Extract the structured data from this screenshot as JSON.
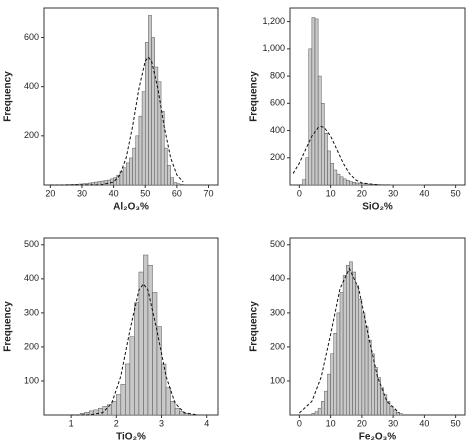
{
  "chart_data": [
    {
      "type": "histogram",
      "xlabel": "Al₂O₃%",
      "ylabel": "Frequency",
      "bins": [
        25,
        26,
        27,
        28,
        29,
        30,
        31,
        32,
        33,
        34,
        35,
        36,
        37,
        38,
        39,
        40,
        41,
        42,
        43,
        44,
        45,
        46,
        47,
        48,
        49,
        50,
        51,
        52,
        53,
        54,
        55,
        56,
        57,
        58,
        59,
        60,
        61,
        62
      ],
      "values": [
        2,
        2,
        3,
        3,
        4,
        5,
        6,
        8,
        10,
        12,
        14,
        16,
        18,
        20,
        25,
        30,
        40,
        55,
        70,
        90,
        110,
        150,
        200,
        280,
        380,
        580,
        690,
        600,
        480,
        420,
        300,
        150,
        80,
        30,
        10,
        5,
        3
      ],
      "color": "#c8c8c8",
      "fit": {
        "x": [
          20,
          36,
          40,
          42,
          44,
          46,
          48,
          50,
          51,
          52,
          54,
          56,
          58,
          60,
          62
        ],
        "values": [
          0,
          0.5,
          12,
          41,
          112,
          238,
          392,
          504,
          520,
          504,
          392,
          238,
          112,
          41,
          12
        ]
      },
      "xlim": [
        18,
        73
      ],
      "ylim": [
        0,
        720
      ],
      "xticks": [
        20,
        30,
        40,
        50,
        60,
        70
      ],
      "yticks": [
        200,
        400,
        600
      ]
    },
    {
      "type": "histogram",
      "xlabel": "SiO₂%",
      "ylabel": "Frequency",
      "bins": [
        1,
        2,
        3,
        4,
        5,
        6,
        7,
        8,
        9,
        10,
        11,
        12,
        13,
        14,
        15,
        16,
        17,
        18,
        19,
        20,
        21,
        22,
        23,
        24,
        25,
        26,
        27,
        28,
        29,
        30,
        31,
        32,
        33,
        34,
        35,
        36,
        37,
        38,
        39,
        40
      ],
      "values": [
        40,
        200,
        1000,
        1230,
        1220,
        800,
        600,
        380,
        250,
        160,
        110,
        80,
        60,
        45,
        35,
        25,
        20,
        15,
        12,
        10,
        8,
        6,
        5,
        4,
        4,
        3,
        3,
        3,
        2,
        2,
        2,
        2,
        1,
        1,
        1,
        1,
        1,
        1,
        1
      ],
      "color": "#c8c8c8",
      "fit": {
        "x": [
          -2,
          0,
          2,
          4,
          6,
          7,
          8,
          10,
          12,
          14,
          16,
          18,
          20,
          25
        ],
        "values": [
          85,
          161,
          261,
          359,
          421,
          430,
          421,
          359,
          261,
          161,
          85,
          38,
          15,
          1
        ]
      },
      "xlim": [
        -3,
        53
      ],
      "ylim": [
        0,
        1300
      ],
      "xticks": [
        0,
        10,
        20,
        30,
        40,
        50
      ],
      "yticks": [
        200,
        400,
        600,
        800,
        {
          "value": 1000,
          "label": "1,000"
        },
        {
          "value": 1200,
          "label": "1,200"
        }
      ]
    },
    {
      "type": "histogram",
      "xlabel": "TiO₂%",
      "ylabel": "Frequency",
      "bins": [
        1.2,
        1.3,
        1.4,
        1.5,
        1.6,
        1.7,
        1.8,
        1.9,
        2.0,
        2.1,
        2.2,
        2.3,
        2.4,
        2.5,
        2.6,
        2.7,
        2.8,
        2.9,
        3.0,
        3.1,
        3.2,
        3.3,
        3.4,
        3.5,
        3.6
      ],
      "values": [
        5,
        8,
        12,
        15,
        20,
        25,
        30,
        40,
        60,
        90,
        150,
        230,
        330,
        420,
        470,
        440,
        360,
        260,
        150,
        80,
        40,
        20,
        10,
        5
      ],
      "color": "#c8c8c8",
      "fit": {
        "x": [
          1.0,
          1.4,
          1.7,
          1.9,
          2.1,
          2.3,
          2.5,
          2.6,
          2.7,
          2.9,
          3.1,
          3.3,
          3.5,
          3.8
        ],
        "values": [
          0,
          0.3,
          7,
          35,
          114,
          248,
          367,
          385,
          367,
          248,
          114,
          35,
          7,
          0
        ]
      },
      "xlim": [
        0.4,
        4.25
      ],
      "ylim": [
        0,
        520
      ],
      "xticks": [
        1,
        2,
        3,
        4
      ],
      "yticks": [
        100,
        200,
        300,
        400,
        500
      ]
    },
    {
      "type": "histogram",
      "xlabel": "Fe₂O₃%",
      "ylabel": "Frequency",
      "bins": [
        4,
        5,
        6,
        7,
        8,
        9,
        10,
        11,
        12,
        13,
        14,
        15,
        16,
        17,
        18,
        19,
        20,
        21,
        22,
        23,
        24,
        25,
        26,
        27,
        28,
        29,
        30,
        31,
        32,
        33
      ],
      "values": [
        5,
        10,
        20,
        40,
        70,
        120,
        180,
        240,
        300,
        360,
        410,
        440,
        450,
        420,
        380,
        340,
        300,
        260,
        220,
        180,
        140,
        110,
        80,
        60,
        40,
        25,
        15,
        8,
        4
      ],
      "color": "#c8c8c8",
      "fit": {
        "x": [
          0,
          4,
          7,
          10,
          13,
          16,
          19,
          22,
          25,
          28,
          32
        ],
        "values": [
          6,
          40,
          112,
          237,
          371,
          430,
          371,
          237,
          112,
          40,
          6
        ]
      },
      "xlim": [
        -3,
        53
      ],
      "ylim": [
        0,
        520
      ],
      "xticks": [
        0,
        10,
        20,
        30,
        40,
        50
      ],
      "yticks": [
        100,
        200,
        300,
        400,
        500
      ]
    }
  ]
}
